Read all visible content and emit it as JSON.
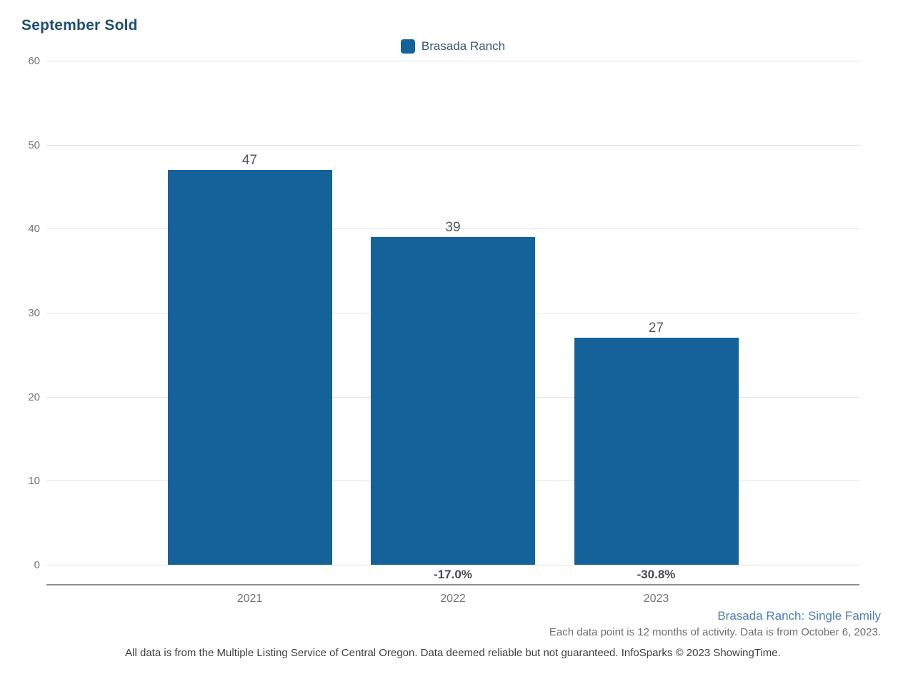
{
  "title": "September Sold",
  "legend": {
    "label": "Brasada Ranch",
    "color": "#15629b"
  },
  "chart_data": {
    "type": "bar",
    "title": "September Sold",
    "categories": [
      "2021",
      "2022",
      "2023"
    ],
    "series": [
      {
        "name": "Brasada Ranch",
        "values": [
          47,
          39,
          27
        ],
        "color": "#15629b"
      }
    ],
    "value_labels": [
      "47",
      "39",
      "27"
    ],
    "pct_change_labels": [
      "",
      "-17.0%",
      "-30.8%"
    ],
    "xlabel": "",
    "ylabel": "",
    "ylim": [
      0,
      60
    ],
    "yticks": [
      0,
      10,
      20,
      30,
      40,
      50,
      60
    ],
    "grid": true,
    "legend_position": "top-center"
  },
  "footnotes": {
    "series_note": "Brasada Ranch: Single Family",
    "data_note": "Each data point is 12 months of activity. Data is from October 6, 2023.",
    "disclaimer": "All data is from the Multiple Listing Service of Central Oregon. Data deemed reliable but not guaranteed. InfoSparks © 2023 ShowingTime."
  },
  "colors": {
    "bar": "#15629b",
    "title_text": "#1f4e6f",
    "gridline": "#e2e2e2",
    "axis_line": "#8c8c8c",
    "tick_text": "#757575",
    "value_text": "#58595b",
    "series_note_text": "#4d7eb2"
  }
}
